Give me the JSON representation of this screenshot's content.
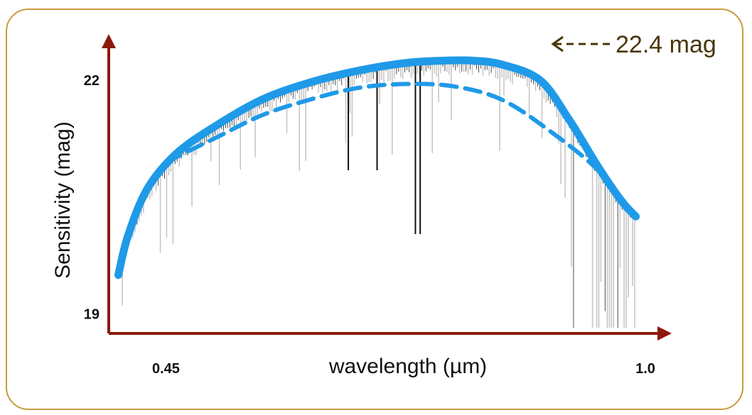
{
  "colors": {
    "frame": "#c99a3e",
    "axis": "#8b1a0c",
    "curve": "#1f9ae8",
    "spectrum_dark": "#111111",
    "spectrum_light": "#bdbdbd",
    "annotation": "#4a3608"
  },
  "chart_data": {
    "type": "line",
    "xlabel": "wavelength (µm)",
    "ylabel": "Sensitivity (mag)",
    "xlim": [
      0.44,
      1.02
    ],
    "ylim": [
      18.75,
      22.5
    ],
    "xticks": [
      {
        "value": 0.45,
        "label": "0.45"
      },
      {
        "value": 1.0,
        "label": "1.0"
      }
    ],
    "yticks": [
      {
        "value": 19,
        "label": "19"
      },
      {
        "value": 22,
        "label": "22"
      }
    ],
    "grid": false,
    "series": [
      {
        "style": "solid",
        "x": [
          0.45,
          0.46,
          0.48,
          0.51,
          0.55,
          0.6,
          0.65,
          0.7,
          0.75,
          0.79,
          0.82,
          0.85,
          0.89,
          0.92,
          0.95,
          0.975,
          0.99
        ],
        "y": [
          19.5,
          20.0,
          20.6,
          21.05,
          21.4,
          21.75,
          21.97,
          22.12,
          22.22,
          22.25,
          22.25,
          22.2,
          22.0,
          21.5,
          20.9,
          20.45,
          20.25
        ]
      },
      {
        "style": "dashed",
        "x": [
          0.5,
          0.55,
          0.6,
          0.65,
          0.7,
          0.75,
          0.8,
          0.85,
          0.9,
          0.95,
          0.99
        ],
        "y": [
          20.95,
          21.25,
          21.55,
          21.75,
          21.9,
          21.95,
          21.92,
          21.75,
          21.35,
          20.85,
          20.25
        ]
      }
    ],
    "annotations": [
      {
        "text": "22.4 mag",
        "arrow": "left"
      }
    ]
  }
}
